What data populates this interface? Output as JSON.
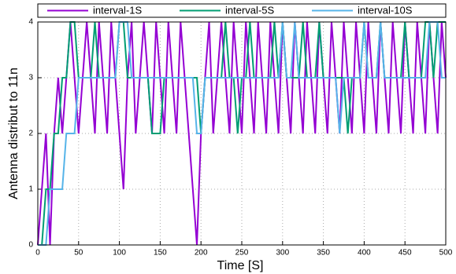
{
  "chart_data": {
    "type": "line",
    "xlabel": "Time [S]",
    "ylabel": "Antenna distribut to 11n",
    "x": [
      0,
      5,
      10,
      15,
      20,
      25,
      30,
      35,
      40,
      45,
      50,
      55,
      60,
      65,
      70,
      75,
      80,
      85,
      90,
      95,
      100,
      105,
      110,
      115,
      120,
      125,
      130,
      135,
      140,
      145,
      150,
      155,
      160,
      165,
      170,
      175,
      180,
      185,
      190,
      195,
      200,
      205,
      210,
      215,
      220,
      225,
      230,
      235,
      240,
      245,
      250,
      255,
      260,
      265,
      270,
      275,
      280,
      285,
      290,
      295,
      300,
      305,
      310,
      315,
      320,
      325,
      330,
      335,
      340,
      345,
      350,
      355,
      360,
      365,
      370,
      375,
      380,
      385,
      390,
      395,
      400,
      405,
      410,
      415,
      420,
      425,
      430,
      435,
      440,
      445,
      450,
      455,
      460,
      465,
      470,
      475,
      480,
      485,
      490,
      495,
      500
    ],
    "series": [
      {
        "name": "interval-1S",
        "color": "#9400d3",
        "values": [
          0,
          1,
          2,
          0,
          2,
          3,
          2,
          3,
          4,
          3,
          2,
          3,
          4,
          3,
          2,
          4,
          3,
          2,
          4,
          3,
          2,
          1,
          3,
          4,
          2,
          3,
          4,
          3,
          2,
          4,
          3,
          2,
          4,
          3,
          2,
          4,
          3,
          2,
          1,
          0,
          2,
          3,
          4,
          2,
          3,
          4,
          3,
          2,
          4,
          3,
          2,
          4,
          3,
          2,
          4,
          3,
          2,
          4,
          3,
          2,
          4,
          3,
          2,
          4,
          3,
          2,
          4,
          3,
          2,
          4,
          3,
          2,
          4,
          3,
          2,
          4,
          3,
          2,
          4,
          3,
          2,
          4,
          3,
          2,
          4,
          3,
          2,
          4,
          3,
          2,
          4,
          3,
          2,
          4,
          3,
          2,
          4,
          3,
          2,
          4,
          3
        ]
      },
      {
        "name": "interval-5S",
        "color": "#009e73",
        "values": [
          0,
          0,
          1,
          1,
          2,
          2,
          3,
          3,
          4,
          4,
          3,
          3,
          3,
          3,
          4,
          3,
          3,
          3,
          3,
          3,
          4,
          4,
          3,
          3,
          3,
          3,
          3,
          3,
          2,
          2,
          2,
          3,
          3,
          3,
          3,
          3,
          3,
          3,
          3,
          3,
          2,
          3,
          3,
          3,
          3,
          3,
          4,
          3,
          3,
          2,
          3,
          3,
          4,
          3,
          3,
          3,
          3,
          3,
          4,
          3,
          4,
          3,
          3,
          3,
          3,
          4,
          3,
          3,
          3,
          4,
          3,
          3,
          3,
          3,
          3,
          3,
          2,
          3,
          3,
          3,
          4,
          3,
          3,
          3,
          4,
          3,
          3,
          3,
          3,
          3,
          4,
          3,
          3,
          3,
          3,
          4,
          4,
          3,
          4,
          4,
          4
        ]
      },
      {
        "name": "interval-10S",
        "color": "#56b4e9",
        "values": [
          0,
          0,
          0,
          1,
          1,
          1,
          1,
          2,
          2,
          2,
          3,
          3,
          3,
          3,
          3,
          3,
          3,
          3,
          3,
          3,
          4,
          4,
          4,
          3,
          3,
          3,
          3,
          3,
          3,
          3,
          3,
          3,
          3,
          3,
          3,
          3,
          3,
          3,
          3,
          2,
          2,
          3,
          3,
          3,
          3,
          3,
          3,
          3,
          3,
          3,
          3,
          3,
          3,
          3,
          3,
          3,
          3,
          3,
          3,
          3,
          4,
          3,
          3,
          4,
          3,
          3,
          3,
          3,
          3,
          3,
          3,
          3,
          3,
          3,
          2,
          3,
          3,
          3,
          3,
          3,
          4,
          3,
          3,
          3,
          4,
          3,
          3,
          3,
          3,
          3,
          3,
          3,
          3,
          3,
          3,
          3,
          4,
          4,
          4,
          3,
          3
        ]
      }
    ],
    "xlim": [
      0,
      500
    ],
    "xticks": [
      0,
      50,
      100,
      150,
      200,
      250,
      300,
      350,
      400,
      450,
      500
    ],
    "ylim": [
      0,
      4
    ],
    "yticks": [
      0,
      1,
      2,
      3,
      4
    ],
    "grid": true,
    "legend": "top"
  }
}
